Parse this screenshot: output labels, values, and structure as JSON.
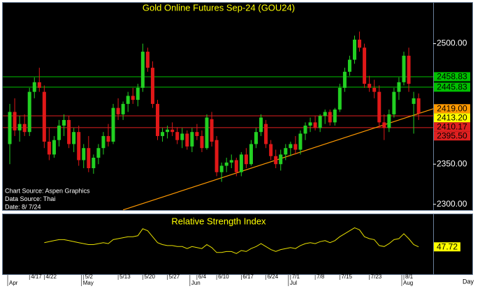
{
  "chart_data": [
    {
      "type": "candlestick",
      "title": "Gold Online Futures Sep-24 (GOU24)",
      "annotations": [
        "Chart Source: Aspen Graphics",
        "Data Source: Thai",
        "Date: 8/ 7/24"
      ],
      "up_color": "#22d022",
      "down_color": "#e01818",
      "open": [
        2375,
        2415,
        2392,
        2400,
        2390,
        2440,
        2452,
        2440,
        2378,
        2362,
        2380,
        2398,
        2405,
        2375,
        2390,
        2355,
        2370,
        2345,
        2358,
        2370,
        2385,
        2378,
        2420,
        2412,
        2425,
        2435,
        2430,
        2445,
        2490,
        2470,
        2425,
        2385,
        2390,
        2393,
        2390,
        2380,
        2388,
        2372,
        2390,
        2385,
        2370,
        2406,
        2380,
        2340,
        2348,
        2352,
        2355,
        2340,
        2362,
        2350,
        2375,
        2390,
        2400,
        2375,
        2360,
        2350,
        2362,
        2370,
        2375,
        2368,
        2388,
        2398,
        2402,
        2395,
        2410,
        2415,
        2402,
        2418,
        2445,
        2465,
        2480,
        2505,
        2495,
        2450,
        2445,
        2440,
        2402,
        2395,
        2412,
        2440,
        2452,
        2485,
        2425,
        2432
      ],
      "high": [
        2425,
        2432,
        2410,
        2412,
        2445,
        2458,
        2470,
        2448,
        2395,
        2385,
        2405,
        2412,
        2410,
        2395,
        2398,
        2375,
        2385,
        2362,
        2375,
        2390,
        2400,
        2425,
        2432,
        2428,
        2440,
        2445,
        2450,
        2500,
        2495,
        2478,
        2430,
        2395,
        2398,
        2402,
        2396,
        2395,
        2392,
        2395,
        2400,
        2392,
        2412,
        2415,
        2385,
        2352,
        2358,
        2362,
        2358,
        2365,
        2370,
        2380,
        2395,
        2412,
        2405,
        2380,
        2368,
        2368,
        2375,
        2378,
        2385,
        2392,
        2402,
        2408,
        2410,
        2412,
        2418,
        2418,
        2420,
        2450,
        2470,
        2485,
        2510,
        2515,
        2500,
        2460,
        2455,
        2448,
        2412,
        2418,
        2445,
        2458,
        2490,
        2495,
        2440,
        2438
      ],
      "low": [
        2350,
        2385,
        2378,
        2385,
        2385,
        2432,
        2440,
        2370,
        2355,
        2358,
        2372,
        2385,
        2370,
        2365,
        2348,
        2345,
        2340,
        2338,
        2350,
        2362,
        2372,
        2375,
        2405,
        2405,
        2415,
        2425,
        2422,
        2440,
        2465,
        2420,
        2380,
        2378,
        2382,
        2385,
        2375,
        2370,
        2368,
        2365,
        2380,
        2365,
        2368,
        2372,
        2335,
        2328,
        2340,
        2345,
        2335,
        2335,
        2345,
        2348,
        2370,
        2385,
        2370,
        2355,
        2345,
        2342,
        2355,
        2360,
        2362,
        2362,
        2380,
        2390,
        2392,
        2390,
        2400,
        2398,
        2398,
        2415,
        2440,
        2460,
        2475,
        2490,
        2445,
        2440,
        2432,
        2395,
        2380,
        2390,
        2408,
        2430,
        2448,
        2440,
        2388,
        2405
      ],
      "close": [
        2415,
        2392,
        2400,
        2390,
        2440,
        2452,
        2445,
        2378,
        2362,
        2380,
        2398,
        2405,
        2375,
        2390,
        2355,
        2370,
        2345,
        2358,
        2370,
        2385,
        2378,
        2420,
        2412,
        2425,
        2435,
        2430,
        2445,
        2490,
        2470,
        2425,
        2385,
        2390,
        2393,
        2390,
        2380,
        2388,
        2372,
        2390,
        2385,
        2370,
        2408,
        2378,
        2340,
        2348,
        2352,
        2355,
        2340,
        2362,
        2350,
        2375,
        2390,
        2408,
        2375,
        2360,
        2350,
        2362,
        2370,
        2375,
        2368,
        2388,
        2398,
        2402,
        2395,
        2410,
        2415,
        2402,
        2418,
        2445,
        2465,
        2480,
        2505,
        2495,
        2450,
        2445,
        2440,
        2402,
        2395,
        2412,
        2440,
        2452,
        2485,
        2450,
        2432,
        2413.2
      ],
      "ylim": [
        2292,
        2550
      ],
      "yticks": [
        {
          "value": 2300,
          "label": "2300.00"
        },
        {
          "value": 2350,
          "label": "2350.00"
        },
        {
          "value": 2500,
          "label": "2500.00"
        }
      ],
      "levels": [
        {
          "value": 2458.83,
          "label": "2458.83",
          "color": "#00c000",
          "line": true
        },
        {
          "value": 2445.83,
          "label": "2445.83",
          "color": "#00c000",
          "line": true
        },
        {
          "value": 2419.0,
          "label": "2419.00",
          "color": "#ff9900",
          "line": false
        },
        {
          "value": 2413.2,
          "label": "2413.20",
          "color": "#ffff00",
          "line": false
        },
        {
          "value": 2410.17,
          "label": "2410.17",
          "color": "#e02020",
          "line": true
        },
        {
          "value": 2395.5,
          "label": "2395.50",
          "color": "#e02020",
          "line": true
        }
      ],
      "trendline": {
        "color": "#ff9900",
        "x": [
          23,
          86
        ],
        "y": [
          2293,
          2419
        ]
      },
      "grid": false
    },
    {
      "type": "line",
      "title": "Relative Strength Index",
      "color": "#e8e000",
      "categories": [
        null,
        null,
        null,
        null,
        "4/17",
        null,
        null,
        "4/22",
        null,
        null,
        null,
        null,
        null,
        null,
        null,
        "5/2",
        null,
        null,
        null,
        null,
        null,
        null,
        "5/13",
        null,
        null,
        null,
        null,
        "5/20",
        null,
        null,
        null,
        null,
        "5/27",
        null,
        null,
        null,
        null,
        null,
        "6/4",
        null,
        null,
        null,
        "6/10",
        null,
        null,
        null,
        null,
        "6/17",
        null,
        null,
        null,
        null,
        "6/24",
        null,
        null,
        null,
        null,
        "7/1",
        null,
        null,
        null,
        null,
        "7/8",
        null,
        null,
        null,
        null,
        "7/15",
        null,
        null,
        null,
        null,
        null,
        "7/23",
        null,
        null,
        null,
        null,
        null,
        null,
        "8/1",
        null,
        null,
        null
      ],
      "x_months": [
        {
          "value": 0,
          "label": "Apr"
        },
        {
          "value": 15,
          "label": "May"
        },
        {
          "value": 37,
          "label": "Jun"
        },
        {
          "value": 57,
          "label": "Jul"
        },
        {
          "value": 80,
          "label": "Aug"
        }
      ],
      "x_label": "Day",
      "values": [
        null,
        null,
        null,
        null,
        null,
        null,
        null,
        52,
        53,
        54,
        55,
        55,
        54,
        53,
        52,
        51,
        50,
        50,
        51,
        52,
        51,
        55,
        56,
        57,
        58,
        58,
        59,
        66,
        64,
        58,
        52,
        50,
        49,
        49,
        48,
        48,
        46,
        48,
        47,
        46,
        50,
        47,
        42,
        42,
        43,
        43,
        41,
        44,
        43,
        46,
        48,
        51,
        48,
        45,
        43,
        45,
        46,
        47,
        46,
        49,
        51,
        52,
        51,
        53,
        54,
        52,
        54,
        58,
        61,
        64,
        67,
        65,
        58,
        56,
        55,
        49,
        48,
        51,
        55,
        56,
        61,
        56,
        50,
        47.72
      ],
      "ylim": [
        20,
        80
      ]
    }
  ]
}
